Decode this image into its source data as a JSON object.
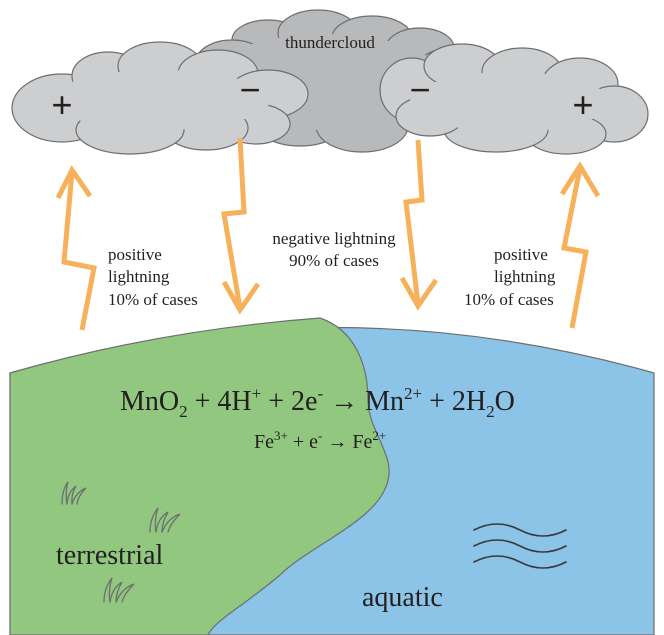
{
  "diagram": {
    "cloud": {
      "label": "thundercloud",
      "charges": {
        "left": "+",
        "center_left": "−",
        "center_right": "−",
        "right": "+"
      }
    },
    "lightning": {
      "left": {
        "line1": "positive",
        "line2": "lightning",
        "line3": "10% of cases"
      },
      "center": {
        "line1": "negative lightning",
        "line2": "90% of cases"
      },
      "right": {
        "line1": "positive",
        "line2": "lightning",
        "line3": "10% of cases"
      }
    },
    "reactions": {
      "manganese": {
        "mno": "MnO",
        "o_sub": "2",
        "plus1": " + 4H",
        "h_sup": "+",
        "plus2": " + 2e",
        "e_sup": "-",
        "arrow": " → ",
        "mn": "Mn",
        "mn_sup": "2+",
        "plus3": " + 2H",
        "h_sub": "2",
        "o": "O"
      },
      "iron": {
        "fe1": "Fe",
        "fe1_sup": "3+",
        "plus": " + e",
        "e_sup": "-",
        "arrow": " → ",
        "fe2": "Fe",
        "fe2_sup": "2+"
      }
    },
    "regions": {
      "land": "terrestrial",
      "water": "aquatic"
    },
    "colors": {
      "cloud_fill": "#cdcecf",
      "cloud_dark": "#b8b9bb",
      "cloud_stroke": "#6d6e70",
      "bolt": "#f7b15a",
      "land": "#91c77e",
      "water": "#8cc4e8",
      "outline": "#6d6e70"
    }
  }
}
